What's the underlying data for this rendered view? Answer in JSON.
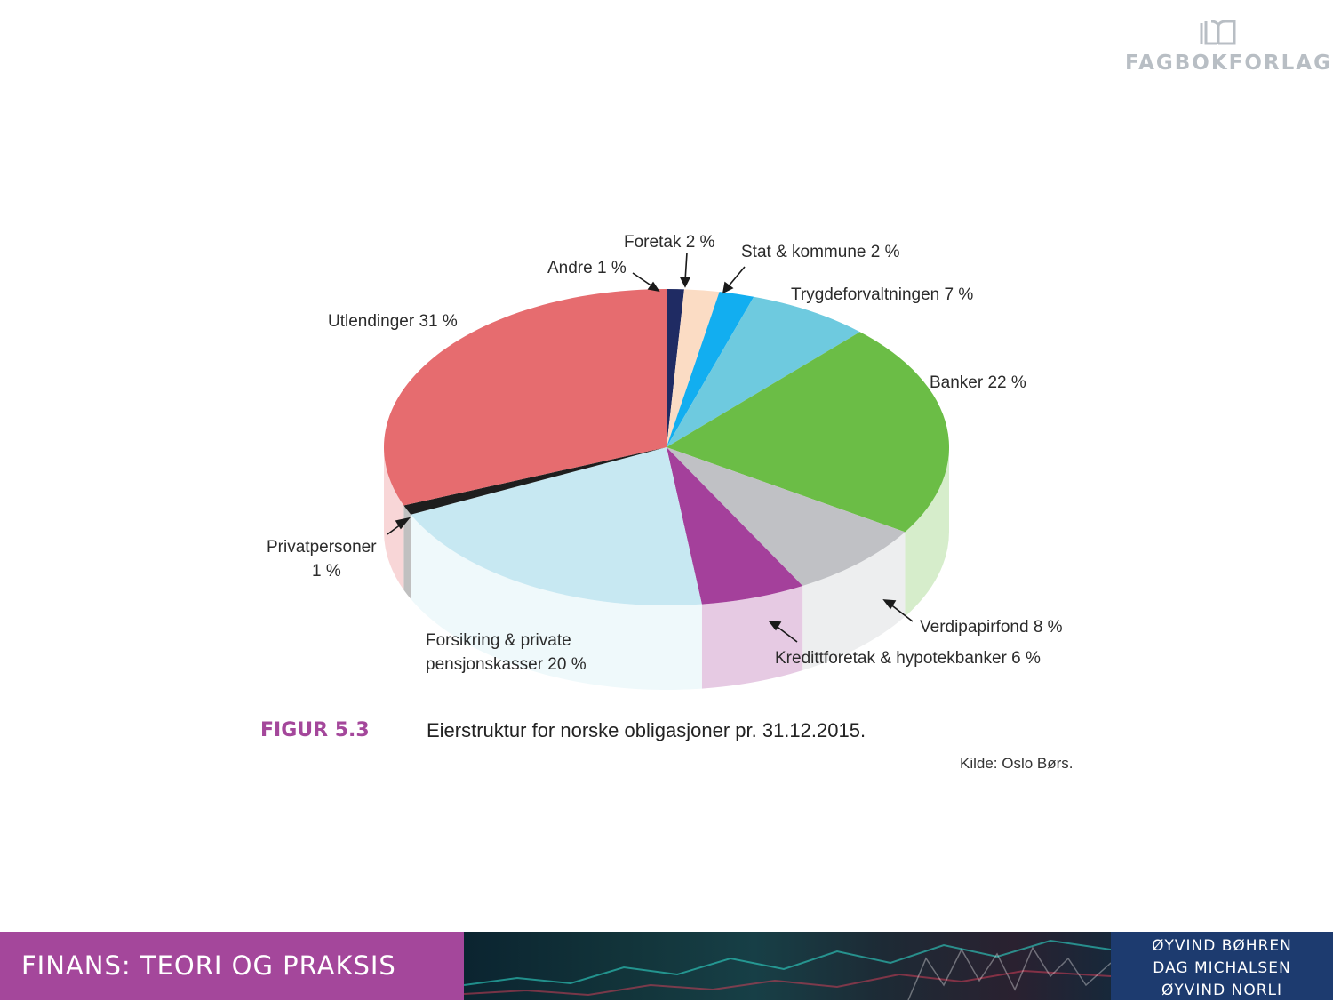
{
  "brand": {
    "publisher": "FAGBOKFORLAGET"
  },
  "figure": {
    "number": "FIGUR 5.3",
    "caption": "Eierstruktur for norske obligasjoner pr. 31.12.2015.",
    "source": "Kilde: Oslo Børs."
  },
  "chart_data": {
    "type": "pie",
    "title": "",
    "legend": "none",
    "slices": [
      {
        "label": "Andre 1 %",
        "value": 1,
        "color": "#1f2b63"
      },
      {
        "label": "Foretak 2 %",
        "value": 2,
        "color": "#fbdcc4"
      },
      {
        "label": "Stat & kommune 2 %",
        "value": 2,
        "color": "#12aef0"
      },
      {
        "label": "Trygdeforvaltningen 7 %",
        "value": 7,
        "color": "#6ecadf"
      },
      {
        "label": "Banker 22 %",
        "value": 22,
        "color": "#6bbd46"
      },
      {
        "label": "Verdipapirfond 8 %",
        "value": 8,
        "color": "#c0c1c5"
      },
      {
        "label": "Kredittforetak & hypotekbanker 6 %",
        "value": 6,
        "color": "#a4409b"
      },
      {
        "label": "Forsikring & private pensjonskasser 20 %",
        "value": 20,
        "color": "#c7e8f2"
      },
      {
        "label": "Privatpersoner 1 %",
        "value": 1,
        "color": "#1e1e1e"
      },
      {
        "label": "Utlendinger 31 %",
        "value": 31,
        "color": "#e66c6f"
      }
    ],
    "label_lines": {
      "forsikring": [
        "Forsikring & private",
        "pensjonskasser 20 %"
      ],
      "privatpersoner": [
        "Privatpersoner",
        "1 %"
      ]
    }
  },
  "footer": {
    "book_title": "FINANS: TEORI OG PRAKSIS",
    "authors": [
      "ØYVIND BØHREN",
      "DAG MICHALSEN",
      "ØYVIND NORLI"
    ]
  }
}
